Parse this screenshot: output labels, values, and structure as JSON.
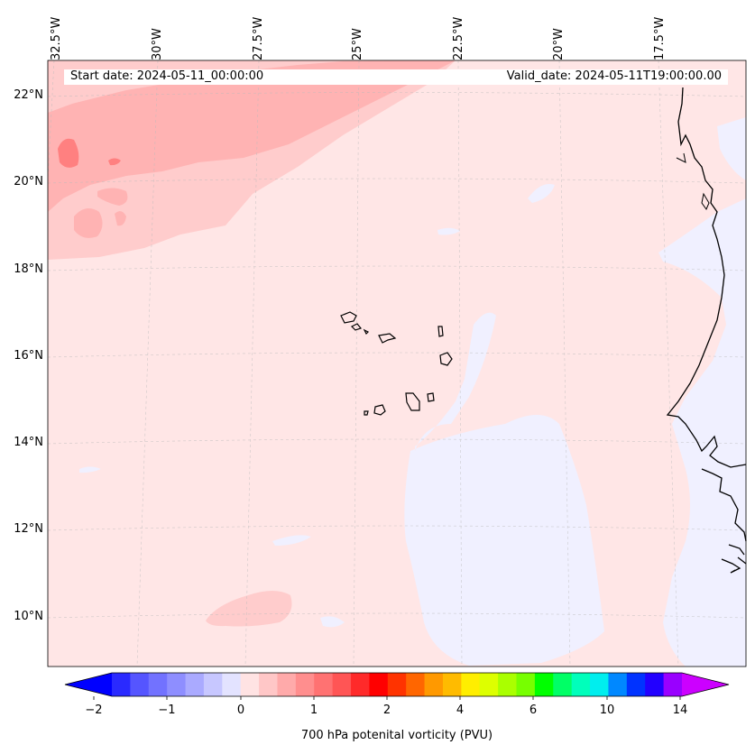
{
  "header": {
    "start_date": "Start date: 2024-05-11_00:00:00",
    "valid_date": "Valid_date: 2024-05-11T19:00:00.00"
  },
  "map": {
    "lon_labels": [
      "32.5°W",
      "30°W",
      "27.5°W",
      "25°W",
      "22.5°W",
      "20°W",
      "17.5°W"
    ],
    "lat_labels": [
      "22°N",
      "20°N",
      "18°N",
      "16°N",
      "14°N",
      "12°N",
      "10°N"
    ],
    "gridlines": true,
    "colors": {
      "background_field": "#ffe6e6",
      "light_red": "#ffcccc",
      "medium_red": "#ffb3b3",
      "strong_red": "#ff7f7f",
      "light_blue": "#f0f0ff",
      "coastline": "#000000"
    }
  },
  "colorbar": {
    "label": "700 hPa potenital vorticity (PVU)",
    "tick_labels": [
      "−2",
      "−1",
      "0",
      "1",
      "2",
      "4",
      "6",
      "10",
      "14"
    ],
    "extend": "both",
    "colors": [
      "#0000ff",
      "#2a2aff",
      "#5555ff",
      "#7272ff",
      "#8e8eff",
      "#aaaaff",
      "#c7c7ff",
      "#e3e3ff",
      "#ffe3e3",
      "#ffc7c7",
      "#ffaaaa",
      "#ff8e8e",
      "#ff7272",
      "#ff5555",
      "#ff2a2a",
      "#ff0000",
      "#ff3300",
      "#ff6600",
      "#ff9900",
      "#ffbb00",
      "#ffee00",
      "#ddff00",
      "#aaff00",
      "#77ff00",
      "#00ff00",
      "#00ff66",
      "#00ffbb",
      "#00eeee",
      "#0088ff",
      "#0033ff",
      "#2200ff",
      "#9900ff",
      "#cc00ff"
    ]
  }
}
